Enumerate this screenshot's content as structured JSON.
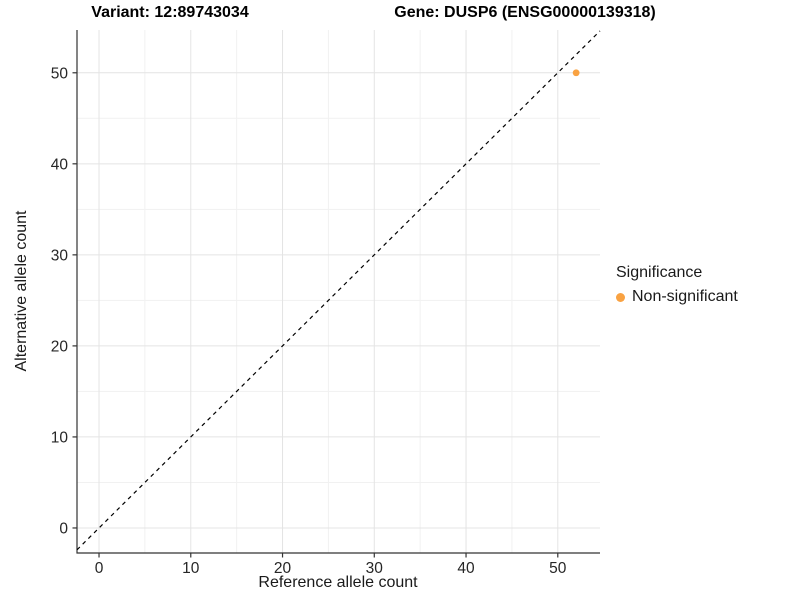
{
  "header": {
    "title_left": "Variant: 12:89743034",
    "title_right": "Gene: DUSP6 (ENSG00000139318)"
  },
  "chart_data": {
    "type": "scatter",
    "title": "Variant: 12:89743034 / Gene: DUSP6 (ENSG00000139318)",
    "xlabel": "Reference allele count",
    "ylabel": "Alternative allele count",
    "xlim": [
      -2.4,
      54.6
    ],
    "ylim": [
      -2.75,
      54.7
    ],
    "x_ticks": [
      0,
      10,
      20,
      30,
      40,
      50
    ],
    "y_ticks": [
      0,
      10,
      20,
      30,
      40,
      50
    ],
    "x_minor_ticks": [
      5,
      15,
      25,
      35,
      45
    ],
    "y_minor_ticks": [
      5,
      15,
      25,
      35,
      45
    ],
    "grid": "on",
    "points": [
      {
        "x": 52,
        "y": 50,
        "series": "Non-significant"
      }
    ],
    "abline": {
      "slope": 1,
      "intercept": 0,
      "style": "dashed"
    },
    "legend": {
      "position": "right",
      "title": "Significance",
      "items": [
        {
          "label": "Non-significant",
          "color": "#F9A242"
        }
      ]
    },
    "colors": {
      "point": "#F9A242",
      "abline": "#000000",
      "axis_line": "#333333",
      "tick_mark": "#333333",
      "grid_major": "#E4E4E4",
      "grid_minor": "#F1F1F1",
      "background": "#FFFFFF"
    }
  }
}
